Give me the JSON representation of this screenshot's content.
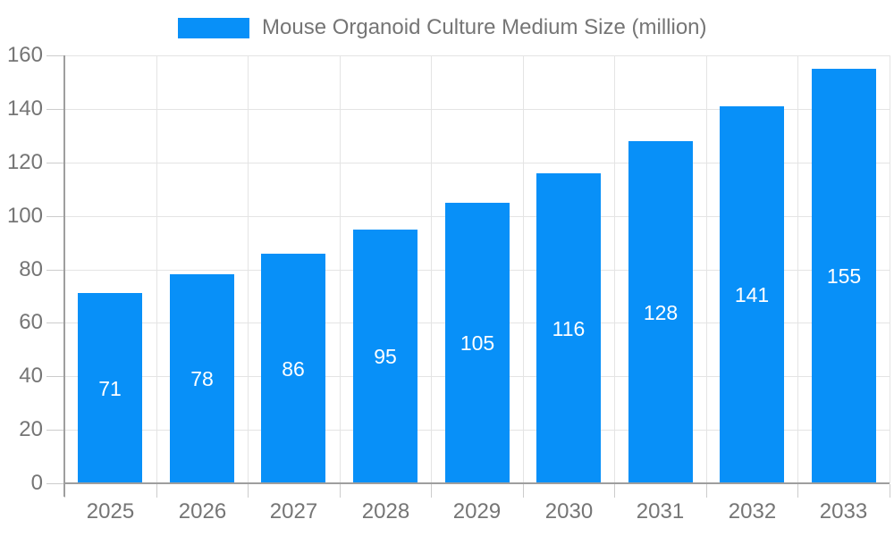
{
  "legend": {
    "label": "Mouse Organoid Culture Medium Size (million)"
  },
  "chart_data": {
    "type": "bar",
    "title": "Mouse Organoid Culture Medium Size (million)",
    "categories": [
      "2025",
      "2026",
      "2027",
      "2028",
      "2029",
      "2030",
      "2031",
      "2032",
      "2033"
    ],
    "values": [
      71,
      78,
      86,
      95,
      105,
      116,
      128,
      141,
      155
    ],
    "yticks": [
      0,
      20,
      40,
      60,
      80,
      100,
      120,
      140,
      160
    ],
    "ylim": [
      0,
      160
    ],
    "xlabel": "",
    "ylabel": "",
    "grid": true,
    "legend_position": "top",
    "value_labels": "inside-center",
    "colors": {
      "bar": "#0890F8",
      "text": "#757575",
      "grid": "#e4e4e4",
      "axis": "#9e9e9e",
      "tick": "#cccccc",
      "value_label": "#ffffff",
      "background": "#ffffff"
    }
  }
}
